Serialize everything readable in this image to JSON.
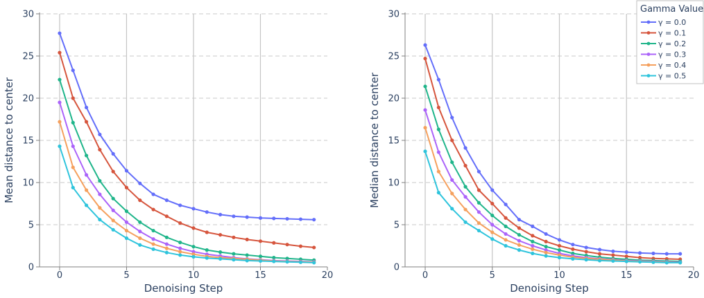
{
  "chart_data": [
    {
      "type": "line",
      "xlabel": "Denoising Step",
      "ylabel": "Mean distance to center",
      "xlim": [
        -1.5,
        20
      ],
      "ylim": [
        0,
        30
      ],
      "xticks": [
        0,
        5,
        10,
        15,
        20
      ],
      "yticks": [
        0,
        5,
        10,
        15,
        20,
        25,
        30
      ],
      "grid": "vertical solid, horizontal dashed",
      "x": [
        0,
        1,
        2,
        3,
        4,
        5,
        6,
        7,
        8,
        9,
        10,
        11,
        12,
        13,
        14,
        15,
        16,
        17,
        18,
        19
      ],
      "series": [
        {
          "name": "γ = 0.0",
          "color": "#636efa",
          "values": [
            27.7,
            23.3,
            18.9,
            15.7,
            13.4,
            11.4,
            9.9,
            8.6,
            7.9,
            7.3,
            6.9,
            6.5,
            6.2,
            6.0,
            5.9,
            5.8,
            5.75,
            5.7,
            5.65,
            5.6
          ]
        },
        {
          "name": "γ = 0.1",
          "color": "#d6553d",
          "values": [
            25.4,
            20.0,
            17.2,
            13.9,
            11.3,
            9.4,
            7.9,
            6.8,
            6.0,
            5.2,
            4.6,
            4.1,
            3.8,
            3.5,
            3.25,
            3.05,
            2.85,
            2.65,
            2.45,
            2.3
          ]
        },
        {
          "name": "γ = 0.2",
          "color": "#1fb58a",
          "values": [
            22.2,
            17.1,
            13.2,
            10.2,
            8.1,
            6.6,
            5.3,
            4.3,
            3.5,
            2.9,
            2.4,
            2.0,
            1.75,
            1.55,
            1.4,
            1.25,
            1.1,
            1.0,
            0.9,
            0.8
          ]
        },
        {
          "name": "γ = 0.3",
          "color": "#ab63fa",
          "values": [
            19.5,
            14.3,
            10.9,
            8.6,
            6.7,
            5.3,
            4.2,
            3.3,
            2.7,
            2.2,
            1.8,
            1.5,
            1.3,
            1.1,
            0.95,
            0.85,
            0.75,
            0.7,
            0.65,
            0.6
          ]
        },
        {
          "name": "γ = 0.4",
          "color": "#f5a05d",
          "values": [
            17.2,
            11.8,
            9.1,
            7.0,
            5.5,
            4.3,
            3.4,
            2.7,
            2.2,
            1.8,
            1.5,
            1.25,
            1.1,
            1.0,
            0.9,
            0.8,
            0.7,
            0.65,
            0.6,
            0.55
          ]
        },
        {
          "name": "γ = 0.5",
          "color": "#2ec4dc",
          "values": [
            14.3,
            9.4,
            7.3,
            5.6,
            4.4,
            3.4,
            2.6,
            2.1,
            1.7,
            1.4,
            1.2,
            1.05,
            0.95,
            0.85,
            0.75,
            0.7,
            0.65,
            0.6,
            0.55,
            0.5
          ]
        }
      ]
    },
    {
      "type": "line",
      "xlabel": "Denoising Step",
      "ylabel": "Median distance to center",
      "xlim": [
        -1.5,
        20
      ],
      "ylim": [
        0,
        30
      ],
      "xticks": [
        0,
        5,
        10,
        15,
        20
      ],
      "yticks": [
        0,
        5,
        10,
        15,
        20,
        25,
        30
      ],
      "grid": "vertical solid, horizontal dashed",
      "legend_title": "Gamma Values",
      "legend_position": "top-right",
      "x": [
        0,
        1,
        2,
        3,
        4,
        5,
        6,
        7,
        8,
        9,
        10,
        11,
        12,
        13,
        14,
        15,
        16,
        17,
        18,
        19
      ],
      "series": [
        {
          "name": "γ = 0.0",
          "color": "#636efa",
          "values": [
            26.3,
            22.2,
            17.7,
            14.1,
            11.3,
            9.1,
            7.4,
            5.6,
            4.8,
            3.9,
            3.2,
            2.65,
            2.3,
            2.05,
            1.85,
            1.75,
            1.65,
            1.6,
            1.55,
            1.55
          ]
        },
        {
          "name": "γ = 0.1",
          "color": "#d6553d",
          "values": [
            24.7,
            18.9,
            15.0,
            12.0,
            9.1,
            7.5,
            5.8,
            4.6,
            3.7,
            3.0,
            2.5,
            2.1,
            1.8,
            1.55,
            1.4,
            1.25,
            1.1,
            1.0,
            0.95,
            0.9
          ]
        },
        {
          "name": "γ = 0.2",
          "color": "#1fb58a",
          "values": [
            21.4,
            16.3,
            12.4,
            9.5,
            7.6,
            6.1,
            4.8,
            3.8,
            3.0,
            2.4,
            2.0,
            1.6,
            1.35,
            1.15,
            1.0,
            0.9,
            0.8,
            0.75,
            0.7,
            0.65
          ]
        },
        {
          "name": "γ = 0.3",
          "color": "#ab63fa",
          "values": [
            18.6,
            13.6,
            10.3,
            8.3,
            6.5,
            5.0,
            3.9,
            3.1,
            2.5,
            2.0,
            1.6,
            1.3,
            1.1,
            0.95,
            0.85,
            0.75,
            0.7,
            0.65,
            0.6,
            0.55
          ]
        },
        {
          "name": "γ = 0.4",
          "color": "#f5a05d",
          "values": [
            16.5,
            11.3,
            8.7,
            6.8,
            5.2,
            4.1,
            3.2,
            2.6,
            2.1,
            1.7,
            1.4,
            1.15,
            1.0,
            0.9,
            0.8,
            0.7,
            0.65,
            0.6,
            0.55,
            0.5
          ]
        },
        {
          "name": "γ = 0.5",
          "color": "#2ec4dc",
          "values": [
            13.7,
            8.8,
            6.9,
            5.3,
            4.3,
            3.3,
            2.5,
            2.0,
            1.6,
            1.3,
            1.1,
            0.95,
            0.85,
            0.75,
            0.7,
            0.65,
            0.6,
            0.55,
            0.5,
            0.5
          ]
        }
      ]
    }
  ]
}
